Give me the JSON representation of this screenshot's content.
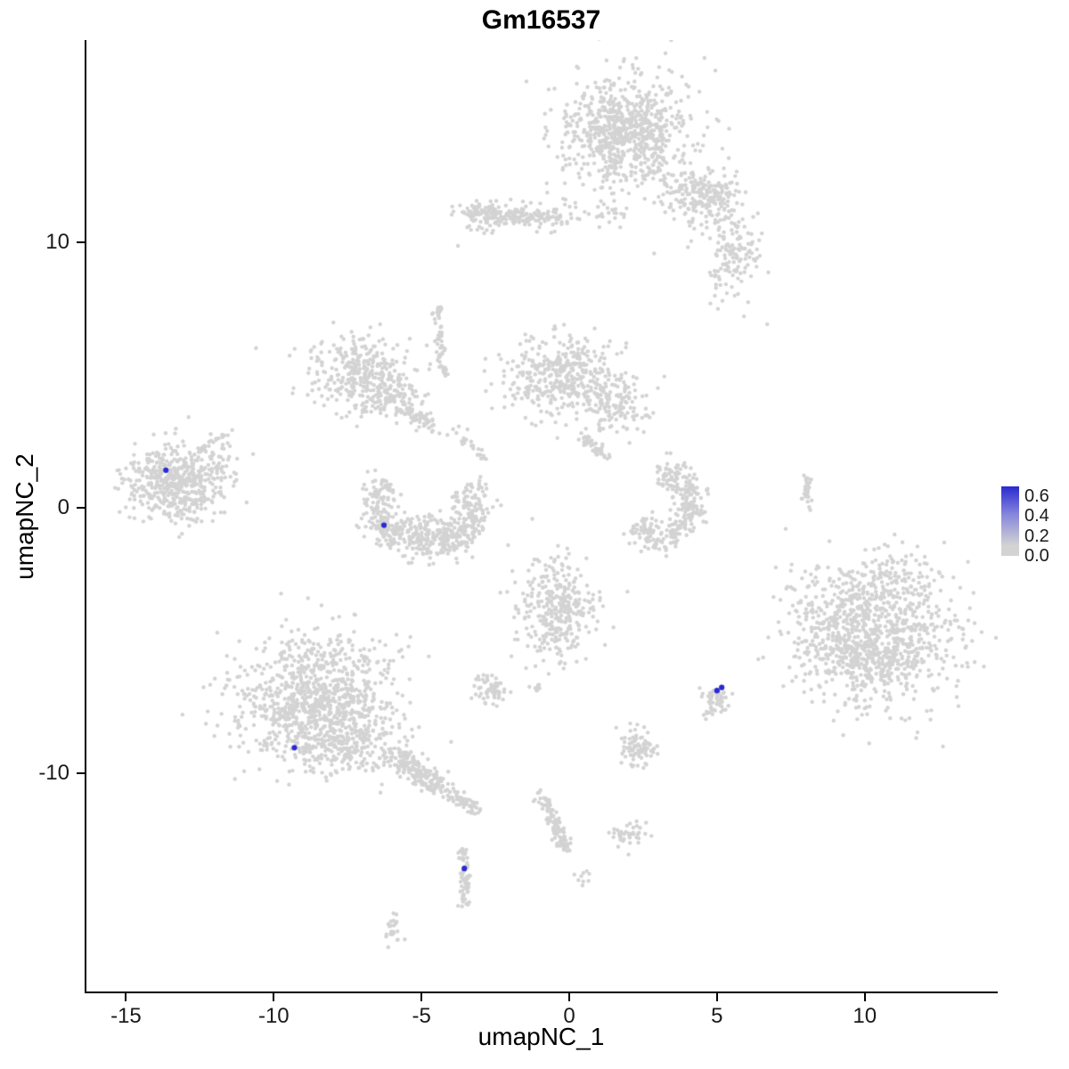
{
  "title": "Gm16537",
  "chart_data": {
    "type": "scatter",
    "title": "Gm16537",
    "xlabel": "umapNC_1",
    "ylabel": "umapNC_2",
    "xlim": [
      -16.4,
      14.5
    ],
    "ylim": [
      -18.3,
      17.6
    ],
    "x_ticks": [
      -15,
      -10,
      -5,
      0,
      5,
      10
    ],
    "y_ticks": [
      -10,
      0,
      10
    ],
    "grid": false,
    "legend_position": "right",
    "point_color_low": "#d3d3d3",
    "point_color_high": "#2a2ad0",
    "legend": {
      "max_value": 0.7,
      "entries": [
        {
          "label": "0.6",
          "value": 0.6
        },
        {
          "label": "0.4",
          "value": 0.4
        },
        {
          "label": "0.2",
          "value": 0.2
        },
        {
          "label": "0.0",
          "value": 0.0
        }
      ]
    },
    "clusters": [
      {
        "shape": "blob",
        "cx": 1.9,
        "cy": 14.2,
        "sx": 0.95,
        "sy": 0.95,
        "n": 650
      },
      {
        "shape": "blob",
        "cx": 1.9,
        "cy": 14.0,
        "sx": 1.6,
        "sy": 1.5,
        "n": 140
      },
      {
        "shape": "blob",
        "cx": 4.5,
        "cy": 11.7,
        "sx": 0.7,
        "sy": 0.55,
        "n": 220
      },
      {
        "shape": "blob",
        "cx": 5.6,
        "cy": 9.5,
        "sx": 0.45,
        "sy": 0.75,
        "n": 130
      },
      {
        "shape": "streak",
        "x1": -3.4,
        "y1": 11.1,
        "x2": 0.0,
        "y2": 10.9,
        "w": 0.4,
        "n": 160
      },
      {
        "shape": "blob",
        "cx": -2.9,
        "cy": 11.0,
        "sx": 0.45,
        "sy": 0.3,
        "n": 70
      },
      {
        "shape": "blob",
        "cx": 1.2,
        "cy": 11.2,
        "sx": 0.5,
        "sy": 0.3,
        "n": 25
      },
      {
        "shape": "streak",
        "x1": -4.45,
        "y1": 7.6,
        "x2": -4.3,
        "y2": 5.0,
        "w": 0.18,
        "n": 55
      },
      {
        "shape": "blob",
        "cx": -7.0,
        "cy": 5.0,
        "sx": 0.85,
        "sy": 0.7,
        "n": 320
      },
      {
        "shape": "blob",
        "cx": -5.9,
        "cy": 4.2,
        "sx": 0.5,
        "sy": 0.5,
        "n": 100
      },
      {
        "shape": "streak",
        "x1": -5.6,
        "y1": 3.8,
        "x2": -4.5,
        "y2": 2.9,
        "w": 0.3,
        "n": 60
      },
      {
        "shape": "blob",
        "cx": -0.3,
        "cy": 4.9,
        "sx": 0.95,
        "sy": 0.75,
        "n": 380
      },
      {
        "shape": "blob",
        "cx": 1.5,
        "cy": 3.9,
        "sx": 0.55,
        "sy": 0.6,
        "n": 130
      },
      {
        "shape": "streak",
        "x1": 0.35,
        "y1": 2.7,
        "x2": 1.25,
        "y2": 1.9,
        "w": 0.25,
        "n": 45
      },
      {
        "shape": "streak",
        "x1": -4.0,
        "y1": 3.0,
        "x2": -2.8,
        "y2": 1.8,
        "w": 0.25,
        "n": 25
      },
      {
        "shape": "arc",
        "cx": -4.85,
        "cy": -0.1,
        "rx": 1.7,
        "ry": 1.4,
        "a1": 135,
        "a2": 400,
        "w": 0.35,
        "n": 430
      },
      {
        "shape": "blob",
        "cx": -4.7,
        "cy": -0.9,
        "sx": 0.75,
        "sy": 0.3,
        "n": 110
      },
      {
        "shape": "blob",
        "cx": -13.3,
        "cy": 0.9,
        "sx": 0.8,
        "sy": 0.65,
        "n": 430
      },
      {
        "shape": "blob",
        "cx": -13.0,
        "cy": 1.2,
        "sx": 1.15,
        "sy": 0.9,
        "n": 80
      },
      {
        "shape": "blob",
        "cx": -11.9,
        "cy": 2.2,
        "sx": 0.25,
        "sy": 0.35,
        "n": 30
      },
      {
        "shape": "arc",
        "cx": 3.05,
        "cy": 0.1,
        "rx": 1.15,
        "ry": 1.25,
        "a1": -140,
        "a2": 95,
        "w": 0.3,
        "n": 300
      },
      {
        "shape": "streak",
        "x1": 8.0,
        "y1": 1.3,
        "x2": 8.1,
        "y2": -0.2,
        "w": 0.15,
        "n": 30
      },
      {
        "shape": "blob",
        "cx": 10.7,
        "cy": -4.8,
        "sx": 1.35,
        "sy": 1.35,
        "n": 700
      },
      {
        "shape": "blob",
        "cx": 9.6,
        "cy": -5.6,
        "sx": 0.9,
        "sy": 0.9,
        "n": 250
      },
      {
        "shape": "blob",
        "cx": 10.2,
        "cy": -2.9,
        "sx": 1.25,
        "sy": 0.65,
        "n": 120
      },
      {
        "shape": "blob",
        "cx": 8.3,
        "cy": -4.7,
        "sx": 0.6,
        "sy": 0.8,
        "n": 60
      },
      {
        "shape": "blob",
        "cx": -0.4,
        "cy": -3.8,
        "sx": 0.7,
        "sy": 0.95,
        "n": 330
      },
      {
        "shape": "blob",
        "cx": -2.6,
        "cy": -6.8,
        "sx": 0.3,
        "sy": 0.28,
        "n": 65
      },
      {
        "shape": "blob",
        "cx": -1.1,
        "cy": -6.8,
        "sx": 0.12,
        "sy": 0.12,
        "n": 8
      },
      {
        "shape": "blob",
        "cx": 4.95,
        "cy": -7.25,
        "sx": 0.28,
        "sy": 0.3,
        "n": 55
      },
      {
        "shape": "blob",
        "cx": -8.6,
        "cy": -7.4,
        "sx": 1.3,
        "sy": 1.05,
        "n": 750
      },
      {
        "shape": "blob",
        "cx": -7.6,
        "cy": -8.8,
        "sx": 0.9,
        "sy": 0.7,
        "n": 250
      },
      {
        "shape": "blob",
        "cx": -8.5,
        "cy": -6.0,
        "sx": 1.5,
        "sy": 0.8,
        "n": 150
      },
      {
        "shape": "streak",
        "x1": -6.0,
        "y1": -9.3,
        "x2": -4.3,
        "y2": -10.6,
        "w": 0.45,
        "n": 170
      },
      {
        "shape": "streak",
        "x1": -4.3,
        "y1": -10.6,
        "x2": -3.1,
        "y2": -11.4,
        "w": 0.3,
        "n": 60
      },
      {
        "shape": "blob",
        "cx": 2.3,
        "cy": -9.0,
        "sx": 0.32,
        "sy": 0.42,
        "n": 85
      },
      {
        "shape": "streak",
        "x1": -1.0,
        "y1": -10.8,
        "x2": -0.1,
        "y2": -12.9,
        "w": 0.25,
        "n": 110
      },
      {
        "shape": "blob",
        "cx": 2.1,
        "cy": -12.3,
        "sx": 0.3,
        "sy": 0.25,
        "n": 40
      },
      {
        "shape": "streak",
        "x1": -3.55,
        "y1": -12.9,
        "x2": -3.5,
        "y2": -15.0,
        "w": 0.18,
        "n": 65
      },
      {
        "shape": "blob",
        "cx": 0.5,
        "cy": -13.9,
        "sx": 0.13,
        "sy": 0.18,
        "n": 9
      },
      {
        "shape": "blob",
        "cx": -5.95,
        "cy": -15.9,
        "sx": 0.18,
        "sy": 0.3,
        "n": 22
      }
    ],
    "singletons": [
      {
        "x": -10.6,
        "y": 6.0
      },
      {
        "x": 6.7,
        "y": 6.9
      }
    ],
    "highlighted_points": [
      {
        "x": -13.65,
        "y": 1.4,
        "value": 0.62
      },
      {
        "x": -6.27,
        "y": -0.67,
        "value": 0.65
      },
      {
        "x": -9.3,
        "y": -9.05,
        "value": 0.6
      },
      {
        "x": 5.0,
        "y": -6.9,
        "value": 0.62
      },
      {
        "x": 5.16,
        "y": -6.78,
        "value": 0.6
      },
      {
        "x": -3.55,
        "y": -13.6,
        "value": 0.6
      }
    ]
  }
}
